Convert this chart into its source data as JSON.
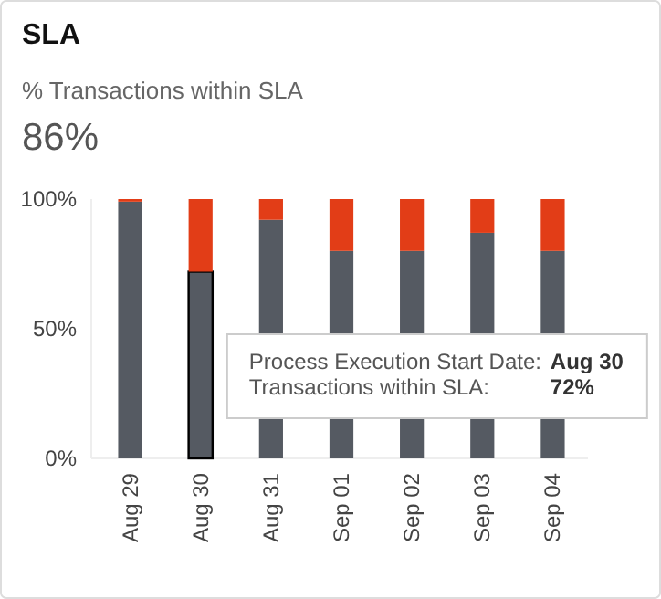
{
  "chart_data": {
    "type": "bar",
    "title": "SLA",
    "subtitle": "% Transactions within SLA",
    "stacked": true,
    "categories": [
      "Aug 29",
      "Aug 30",
      "Aug 31",
      "Sep 01",
      "Sep 02",
      "Sep 03",
      "Sep 04"
    ],
    "series": [
      {
        "color": "#555a62",
        "values": [
          99,
          72,
          92,
          80,
          80,
          87,
          80
        ]
      },
      {
        "color": "#e23d17",
        "values": [
          1,
          28,
          8,
          20,
          20,
          13,
          20
        ]
      }
    ],
    "ylim": [
      0,
      100
    ],
    "yticks": [
      {
        "value": 0,
        "label": "0%"
      },
      {
        "value": 50,
        "label": "50%"
      },
      {
        "value": 100,
        "label": "100%"
      }
    ],
    "grid": false,
    "annotations": [
      "86%",
      "Process Execution Start Date: Aug 30",
      "Transactions within SLA: 72%"
    ]
  }
}
